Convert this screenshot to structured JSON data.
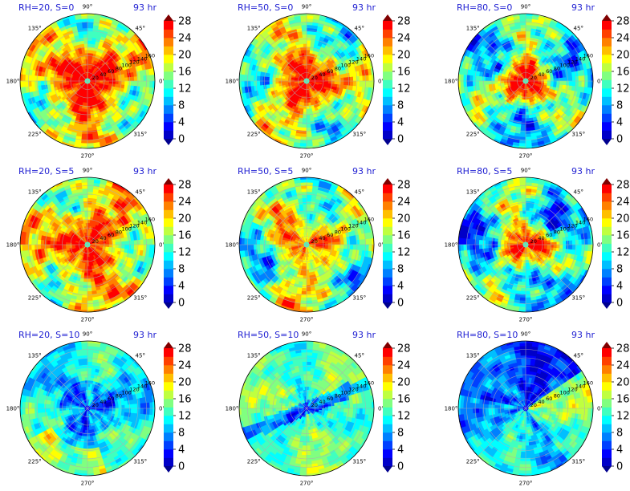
{
  "chart_data": [
    {
      "type": "heatmap",
      "projection": "polar",
      "title_left": "RH=20, S=0",
      "title_right": "93 hr",
      "row": 0,
      "col": 0,
      "eye": [
        0,
        0
      ],
      "core_level": 28,
      "core_radius": 0.55,
      "background_level": 17,
      "field_variant": 0
    },
    {
      "type": "heatmap",
      "projection": "polar",
      "title_left": "RH=50, S=0",
      "title_right": "93 hr",
      "row": 0,
      "col": 1,
      "eye": [
        0,
        0
      ],
      "core_level": 27,
      "core_radius": 0.5,
      "background_level": 15,
      "field_variant": 1
    },
    {
      "type": "heatmap",
      "projection": "polar",
      "title_left": "RH=80, S=0",
      "title_right": "93 hr",
      "row": 0,
      "col": 2,
      "eye": [
        0,
        0
      ],
      "core_level": 28,
      "core_radius": 0.38,
      "background_level": 12,
      "field_variant": 2
    },
    {
      "type": "heatmap",
      "projection": "polar",
      "title_left": "RH=20, S=5",
      "title_right": "93 hr",
      "row": 1,
      "col": 0,
      "eye": [
        0,
        0
      ],
      "core_level": 26,
      "core_radius": 0.5,
      "background_level": 18,
      "field_variant": 3
    },
    {
      "type": "heatmap",
      "projection": "polar",
      "title_left": "RH=50, S=5",
      "title_right": "93 hr",
      "row": 1,
      "col": 1,
      "eye": [
        0,
        0
      ],
      "core_level": 22,
      "core_radius": 0.55,
      "background_level": 14,
      "field_variant": 4
    },
    {
      "type": "heatmap",
      "projection": "polar",
      "title_left": "RH=80, S=5",
      "title_right": "93 hr",
      "row": 1,
      "col": 2,
      "eye": [
        0,
        0
      ],
      "core_level": 26,
      "core_radius": 0.4,
      "background_level": 11,
      "field_variant": 5
    },
    {
      "type": "heatmap",
      "projection": "polar",
      "title_left": "RH=20, S=10",
      "title_right": "93 hr",
      "row": 2,
      "col": 0,
      "eye": [
        0,
        0
      ],
      "core_level": 9,
      "core_radius": 0.4,
      "background_level": 11,
      "field_variant": 6
    },
    {
      "type": "heatmap",
      "projection": "polar",
      "title_left": "RH=50, S=10",
      "title_right": "93 hr",
      "row": 2,
      "col": 1,
      "eye": [
        0,
        0
      ],
      "core_level": 12,
      "core_radius": 0.3,
      "background_level": 14,
      "field_variant": 7
    },
    {
      "type": "heatmap",
      "projection": "polar",
      "title_left": "RH=80, S=10",
      "title_right": "93 hr",
      "row": 2,
      "col": 2,
      "eye": [
        0,
        0
      ],
      "core_level": 6,
      "core_radius": 0.4,
      "background_level": 10,
      "field_variant": 8
    }
  ],
  "shared": {
    "angle_ticks": [
      "0°",
      "45°",
      "90°",
      "135°",
      "180°",
      "225°",
      "270°",
      "315°"
    ],
    "radial_ticks": [
      "20",
      "40",
      "60",
      "80",
      "100",
      "120",
      "140",
      "160"
    ],
    "colorbar_ticks": [
      "0",
      "4",
      "8",
      "12",
      "16",
      "20",
      "24",
      "28"
    ],
    "colorbar_range": [
      0,
      28
    ],
    "colorbar_step": 2,
    "colormap": [
      "#00008f",
      "#0000c8",
      "#0000ff",
      "#0040ff",
      "#0080ff",
      "#00bfff",
      "#00ffff",
      "#40ffbf",
      "#80ff80",
      "#bfff40",
      "#ffff00",
      "#ffbf00",
      "#ff8000",
      "#ff4000",
      "#ff0000",
      "#c80000",
      "#800000"
    ]
  }
}
